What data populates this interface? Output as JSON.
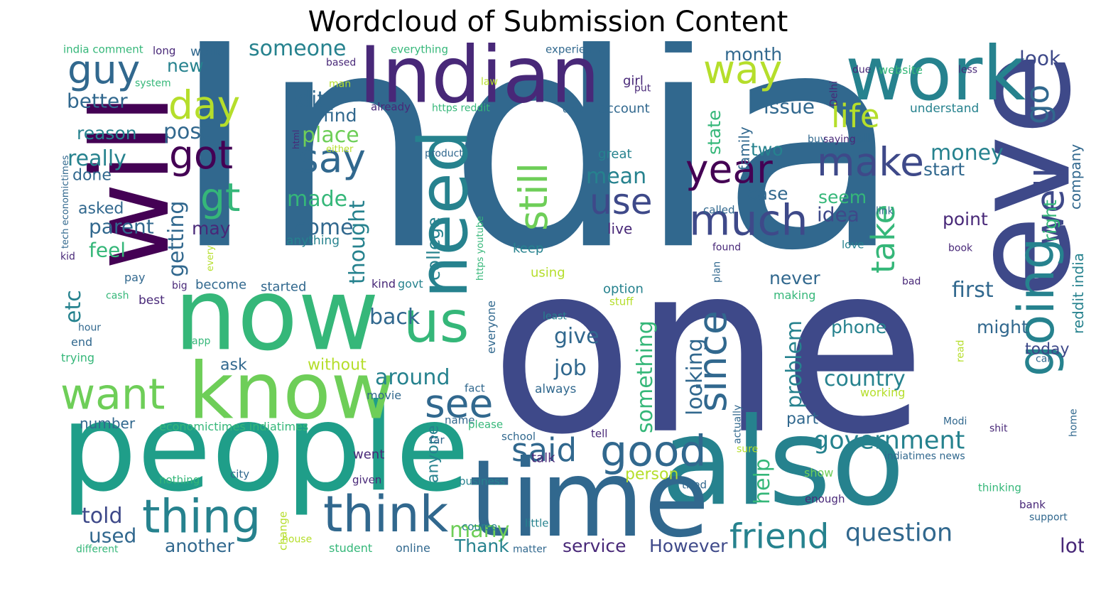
{
  "title": "Wordcloud of Submission Content",
  "palette": [
    "#440154",
    "#482878",
    "#3e4989",
    "#31688e",
    "#26828e",
    "#1f9e89",
    "#35b779",
    "#6ece58",
    "#b5de2b",
    "#fde725"
  ],
  "words": [
    {
      "text": "India",
      "color": "#31688e"
    },
    {
      "text": "one",
      "color": "#3e4989"
    },
    {
      "text": "people",
      "color": "#1f9e89"
    },
    {
      "text": "also",
      "color": "#26828e"
    },
    {
      "text": "even",
      "color": "#3e4989"
    },
    {
      "text": "will",
      "color": "#440154"
    },
    {
      "text": "time",
      "color": "#31688e"
    },
    {
      "text": "now",
      "color": "#35b779"
    },
    {
      "text": "know",
      "color": "#6ece58"
    },
    {
      "text": "Indian",
      "color": "#482878"
    },
    {
      "text": "work",
      "color": "#26828e"
    },
    {
      "text": "need",
      "color": "#26828e"
    },
    {
      "text": "us",
      "color": "#35b779"
    },
    {
      "text": "think",
      "color": "#31688e"
    },
    {
      "text": "thing",
      "color": "#26828e"
    },
    {
      "text": "going",
      "color": "#26828e"
    },
    {
      "text": "want",
      "color": "#6ece58"
    },
    {
      "text": "good",
      "color": "#31688e"
    },
    {
      "text": "since",
      "color": "#31688e"
    },
    {
      "text": "much",
      "color": "#3e4989"
    },
    {
      "text": "make",
      "color": "#3e4989"
    },
    {
      "text": "year",
      "color": "#440154"
    },
    {
      "text": "guy",
      "color": "#31688e"
    },
    {
      "text": "say",
      "color": "#31688e"
    },
    {
      "text": "day",
      "color": "#b5de2b"
    },
    {
      "text": "still",
      "color": "#6ece58"
    },
    {
      "text": "see",
      "color": "#31688e"
    },
    {
      "text": "got",
      "color": "#440154"
    },
    {
      "text": "way",
      "color": "#b5de2b"
    },
    {
      "text": "friend",
      "color": "#26828e"
    },
    {
      "text": "well",
      "color": "#3e4989"
    },
    {
      "text": "gt",
      "color": "#35b779"
    },
    {
      "text": "use",
      "color": "#3e4989"
    },
    {
      "text": "take",
      "color": "#35b779"
    },
    {
      "text": "go",
      "color": "#31688e"
    },
    {
      "text": "life",
      "color": "#b5de2b"
    },
    {
      "text": "said",
      "color": "#31688e"
    },
    {
      "text": "question",
      "color": "#31688e"
    },
    {
      "text": "government",
      "color": "#26828e"
    },
    {
      "text": "etc",
      "color": "#26828e"
    },
    {
      "text": "someone",
      "color": "#26828e"
    },
    {
      "text": "thought",
      "color": "#26828e"
    },
    {
      "text": "country",
      "color": "#26828e"
    },
    {
      "text": "something",
      "color": "#35b779"
    },
    {
      "text": "around",
      "color": "#26828e"
    },
    {
      "text": "back",
      "color": "#31688e"
    },
    {
      "text": "first",
      "color": "#31688e"
    },
    {
      "text": "job",
      "color": "#31688e"
    },
    {
      "text": "give",
      "color": "#31688e"
    },
    {
      "text": "getting",
      "color": "#31688e"
    },
    {
      "text": "place",
      "color": "#6ece58"
    },
    {
      "text": "post",
      "color": "#31688e"
    },
    {
      "text": "Edit",
      "color": "#31688e"
    },
    {
      "text": "money",
      "color": "#26828e"
    },
    {
      "text": "really",
      "color": "#26828e"
    },
    {
      "text": "problem",
      "color": "#26828e"
    },
    {
      "text": "looking",
      "color": "#31688e"
    },
    {
      "text": "many",
      "color": "#6ece58"
    },
    {
      "text": "told",
      "color": "#3e4989"
    },
    {
      "text": "help",
      "color": "#35b779"
    },
    {
      "text": "used",
      "color": "#31688e"
    },
    {
      "text": "come",
      "color": "#31688e"
    },
    {
      "text": "mean",
      "color": "#26828e"
    },
    {
      "text": "made",
      "color": "#35b779"
    },
    {
      "text": "better",
      "color": "#31688e"
    },
    {
      "text": "parent",
      "color": "#31688e"
    },
    {
      "text": "feel",
      "color": "#35b779"
    },
    {
      "text": "issue",
      "color": "#31688e"
    },
    {
      "text": "idea",
      "color": "#3e4989"
    },
    {
      "text": "lot",
      "color": "#482878"
    },
    {
      "text": "look",
      "color": "#3e4989"
    },
    {
      "text": "phone",
      "color": "#26828e"
    },
    {
      "text": "Thank",
      "color": "#26828e"
    },
    {
      "text": "another",
      "color": "#31688e"
    },
    {
      "text": "service",
      "color": "#482878"
    },
    {
      "text": "However",
      "color": "#3e4989"
    },
    {
      "text": "may",
      "color": "#482878"
    },
    {
      "text": "new",
      "color": "#26828e"
    },
    {
      "text": "find",
      "color": "#31688e"
    },
    {
      "text": "two",
      "color": "#26828e"
    },
    {
      "text": "case",
      "color": "#31688e"
    },
    {
      "text": "seem",
      "color": "#35b779"
    },
    {
      "text": "month",
      "color": "#31688e"
    },
    {
      "text": "state",
      "color": "#35b779"
    },
    {
      "text": "family",
      "color": "#31688e"
    },
    {
      "text": "start",
      "color": "#31688e"
    },
    {
      "text": "right",
      "color": "#35b779"
    },
    {
      "text": "company",
      "color": "#31688e"
    },
    {
      "text": "reddit india",
      "color": "#26828e"
    },
    {
      "text": "point",
      "color": "#482878"
    },
    {
      "text": "college",
      "color": "#26828e"
    },
    {
      "text": "reason",
      "color": "#26828e"
    },
    {
      "text": "done",
      "color": "#31688e"
    },
    {
      "text": "asked",
      "color": "#31688e"
    },
    {
      "text": "ask",
      "color": "#31688e"
    },
    {
      "text": "without",
      "color": "#b5de2b"
    },
    {
      "text": "never",
      "color": "#31688e"
    },
    {
      "text": "might",
      "color": "#31688e"
    },
    {
      "text": "today",
      "color": "#3e4989"
    },
    {
      "text": "part",
      "color": "#31688e"
    },
    {
      "text": "person",
      "color": "#b5de2b"
    },
    {
      "text": "anyone",
      "color": "#26828e"
    },
    {
      "text": "number",
      "color": "#31688e"
    },
    {
      "text": "live",
      "color": "#482878"
    },
    {
      "text": "world",
      "color": "#31688e"
    },
    {
      "text": "girl",
      "color": "#482878"
    },
    {
      "text": "account",
      "color": "#31688e"
    },
    {
      "text": "understand",
      "color": "#26828e"
    },
    {
      "text": "call",
      "color": "#31688e"
    },
    {
      "text": "keep",
      "color": "#26828e"
    },
    {
      "text": "started",
      "color": "#31688e"
    },
    {
      "text": "become",
      "color": "#31688e"
    },
    {
      "text": "option",
      "color": "#26828e"
    },
    {
      "text": "went",
      "color": "#482878"
    },
    {
      "text": "anything",
      "color": "#26828e"
    },
    {
      "text": "using",
      "color": "#b5de2b"
    },
    {
      "text": "great",
      "color": "#26828e"
    },
    {
      "text": "website",
      "color": "#35b779"
    },
    {
      "text": "always",
      "color": "#31688e"
    },
    {
      "text": "movie",
      "color": "#31688e"
    },
    {
      "text": "online",
      "color": "#31688e"
    },
    {
      "text": "student",
      "color": "#35b779"
    },
    {
      "text": "economictimes indiatimes",
      "color": "#35b779"
    },
    {
      "text": "working",
      "color": "#b5de2b"
    },
    {
      "text": "talk",
      "color": "#482878"
    },
    {
      "text": "pay",
      "color": "#31688e"
    },
    {
      "text": "best",
      "color": "#482878"
    },
    {
      "text": "kind",
      "color": "#482878"
    },
    {
      "text": "govt",
      "color": "#26828e"
    },
    {
      "text": "end",
      "color": "#31688e"
    },
    {
      "text": "hour",
      "color": "#31688e"
    },
    {
      "text": "trying",
      "color": "#35b779"
    },
    {
      "text": "making",
      "color": "#35b779"
    },
    {
      "text": "stuff",
      "color": "#b5de2b"
    },
    {
      "text": "everyone",
      "color": "#31688e"
    },
    {
      "text": "fact",
      "color": "#31688e"
    },
    {
      "text": "name",
      "color": "#31688e"
    },
    {
      "text": "please",
      "color": "#35b779"
    },
    {
      "text": "school",
      "color": "#31688e"
    },
    {
      "text": "tell",
      "color": "#482878"
    },
    {
      "text": "far",
      "color": "#31688e"
    },
    {
      "text": "show",
      "color": "#6ece58"
    },
    {
      "text": "tried",
      "color": "#31688e"
    },
    {
      "text": "business",
      "color": "#26828e"
    },
    {
      "text": "given",
      "color": "#482878"
    },
    {
      "text": "nothing",
      "color": "#35b779"
    },
    {
      "text": "city",
      "color": "#31688e"
    },
    {
      "text": "course",
      "color": "#26828e"
    },
    {
      "text": "little",
      "color": "#26828e"
    },
    {
      "text": "house",
      "color": "#b5de2b"
    },
    {
      "text": "change",
      "color": "#b5de2b"
    },
    {
      "text": "matter",
      "color": "#31688e"
    },
    {
      "text": "different",
      "color": "#35b779"
    },
    {
      "text": "enough",
      "color": "#482878"
    },
    {
      "text": "thinking",
      "color": "#35b779"
    },
    {
      "text": "bank",
      "color": "#482878"
    },
    {
      "text": "support",
      "color": "#31688e"
    },
    {
      "text": "indiatimes news",
      "color": "#31688e"
    },
    {
      "text": "Modi",
      "color": "#31688e"
    },
    {
      "text": "shit",
      "color": "#482878"
    },
    {
      "text": "home",
      "color": "#31688e"
    },
    {
      "text": "actually",
      "color": "#31688e"
    },
    {
      "text": "sure",
      "color": "#b5de2b"
    },
    {
      "text": "read",
      "color": "#b5de2b"
    },
    {
      "text": "car",
      "color": "#31688e"
    },
    {
      "text": "bad",
      "color": "#482878"
    },
    {
      "text": "love",
      "color": "#26828e"
    },
    {
      "text": "book",
      "color": "#482878"
    },
    {
      "text": "link",
      "color": "#31688e"
    },
    {
      "text": "called",
      "color": "#31688e"
    },
    {
      "text": "found",
      "color": "#482878"
    },
    {
      "text": "plan",
      "color": "#31688e"
    },
    {
      "text": "least",
      "color": "#26828e"
    },
    {
      "text": "app",
      "color": "#35b779"
    },
    {
      "text": "cash",
      "color": "#35b779"
    },
    {
      "text": "big",
      "color": "#482878"
    },
    {
      "text": "every",
      "color": "#b5de2b"
    },
    {
      "text": "kid",
      "color": "#482878"
    },
    {
      "text": "tech economictimes",
      "color": "#31688e"
    },
    {
      "text": "html",
      "color": "#482878"
    },
    {
      "text": "either",
      "color": "#b5de2b"
    },
    {
      "text": "product",
      "color": "#31688e"
    },
    {
      "text": "https youtube",
      "color": "#35b779"
    },
    {
      "text": "https reddit",
      "color": "#35b779"
    },
    {
      "text": "already",
      "color": "#482878"
    },
    {
      "text": "data",
      "color": "#31688e"
    },
    {
      "text": "buy",
      "color": "#31688e"
    },
    {
      "text": "Delhi",
      "color": "#482878"
    },
    {
      "text": "put",
      "color": "#482878"
    },
    {
      "text": "law",
      "color": "#b5de2b"
    },
    {
      "text": "man",
      "color": "#b5de2b"
    },
    {
      "text": "based",
      "color": "#482878"
    },
    {
      "text": "system",
      "color": "#35b779"
    },
    {
      "text": "long",
      "color": "#482878"
    },
    {
      "text": "india comment",
      "color": "#35b779"
    },
    {
      "text": "everything",
      "color": "#35b779"
    },
    {
      "text": "experience",
      "color": "#31688e"
    },
    {
      "text": "due",
      "color": "#482878"
    },
    {
      "text": "less",
      "color": "#482878"
    },
    {
      "text": "saying",
      "color": "#482878"
    }
  ]
}
